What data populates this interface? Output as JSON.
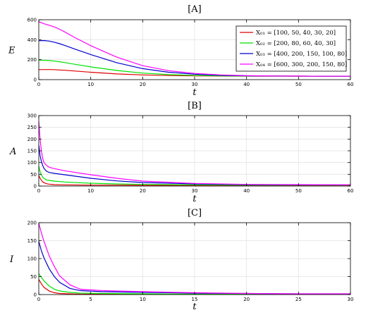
{
  "colors": [
    "#e00000",
    "#00e000",
    "#0000cc",
    "#ff00ff"
  ],
  "chart_data": [
    {
      "type": "line",
      "title": "[A]",
      "xlabel": "t",
      "ylabel": "E",
      "xlim": [
        0,
        60
      ],
      "ylim": [
        0,
        600
      ],
      "xticks": [
        0,
        10,
        20,
        30,
        40,
        50,
        60
      ],
      "yticks": [
        0,
        200,
        400,
        600
      ],
      "grid": true,
      "legend": "top-right",
      "series": [
        {
          "name": "X01 = [100, 50, 40, 30, 20]",
          "legend_label": "X₀₁ = [100, 50, 40, 30, 20]",
          "x": [
            0,
            1,
            2,
            3,
            4,
            5,
            7,
            10,
            15,
            20,
            25,
            30,
            35,
            40,
            45,
            50,
            55,
            60
          ],
          "y": [
            100,
            101,
            101,
            100,
            97,
            94,
            86,
            74,
            57,
            47,
            41,
            38,
            36,
            35,
            35,
            35,
            34,
            34
          ]
        },
        {
          "name": "X02 = [200, 80, 60, 40, 30]",
          "legend_label": "X₀₂ = [200, 80, 60, 40, 30]",
          "x": [
            0,
            1,
            2,
            3,
            4,
            5,
            7,
            10,
            15,
            20,
            25,
            30,
            35,
            40,
            45,
            50,
            55,
            60
          ],
          "y": [
            195,
            194,
            191,
            186,
            179,
            171,
            153,
            128,
            92,
            66,
            50,
            42,
            38,
            36,
            35,
            34,
            34,
            34
          ]
        },
        {
          "name": "X03 = [400, 200, 150, 100, 80]",
          "legend_label": "X₀₃ = [400, 200, 150, 100, 80]",
          "x": [
            0,
            1,
            2,
            3,
            4,
            5,
            7,
            10,
            15,
            20,
            25,
            30,
            35,
            40,
            45,
            50,
            55,
            60
          ],
          "y": [
            390,
            392,
            386,
            375,
            360,
            343,
            305,
            251,
            170,
            110,
            74,
            54,
            43,
            38,
            36,
            35,
            34,
            34
          ]
        },
        {
          "name": "X04 = [600, 300, 200, 150, 80]",
          "legend_label": "X₀₄ = [600, 300, 200, 150, 80]",
          "x": [
            0,
            1,
            2,
            3,
            4,
            5,
            7,
            10,
            15,
            20,
            25,
            30,
            35,
            40,
            45,
            50,
            55,
            60
          ],
          "y": [
            580,
            560,
            545,
            528,
            505,
            478,
            420,
            340,
            225,
            140,
            90,
            62,
            47,
            40,
            37,
            35,
            34,
            34
          ]
        }
      ]
    },
    {
      "type": "line",
      "title": "[B]",
      "xlabel": "t",
      "ylabel": "A",
      "xlim": [
        0,
        60
      ],
      "ylim": [
        0,
        300
      ],
      "xticks": [
        0,
        10,
        20,
        30,
        40,
        50,
        60
      ],
      "yticks": [
        0,
        50,
        100,
        150,
        200,
        250,
        300
      ],
      "grid": true,
      "series": [
        {
          "x": [
            0,
            0.25,
            0.5,
            0.75,
            1,
            1.5,
            2,
            3,
            5,
            10,
            15,
            20,
            30,
            40,
            50,
            60
          ],
          "y": [
            45,
            33,
            25,
            18,
            14,
            10,
            8,
            6,
            5,
            4,
            4,
            3,
            3,
            3,
            3,
            3
          ]
        },
        {
          "x": [
            0,
            0.25,
            0.5,
            0.75,
            1,
            1.5,
            2,
            3,
            5,
            10,
            15,
            20,
            30,
            40,
            50,
            60
          ],
          "y": [
            85,
            62,
            48,
            38,
            32,
            26,
            24,
            21,
            17,
            12,
            9,
            7,
            5,
            4,
            4,
            4
          ]
        },
        {
          "x": [
            0,
            0.25,
            0.5,
            0.75,
            1,
            1.5,
            2,
            3,
            5,
            10,
            15,
            20,
            30,
            40,
            50,
            60
          ],
          "y": [
            175,
            130,
            105,
            88,
            75,
            63,
            58,
            54,
            48,
            33,
            22,
            15,
            9,
            6,
            5,
            5
          ]
        },
        {
          "x": [
            0,
            0.25,
            0.5,
            0.75,
            1,
            1.5,
            2,
            3,
            5,
            10,
            15,
            20,
            30,
            40,
            50,
            60
          ],
          "y": [
            275,
            200,
            150,
            118,
            100,
            88,
            80,
            74,
            65,
            48,
            33,
            21,
            11,
            7,
            6,
            5
          ]
        }
      ]
    },
    {
      "type": "line",
      "title": "[C]",
      "xlabel": "t",
      "ylabel": "I",
      "xlim": [
        0,
        30
      ],
      "ylim": [
        0,
        200
      ],
      "xticks": [
        0,
        5,
        10,
        15,
        20,
        25,
        30
      ],
      "yticks": [
        0,
        50,
        100,
        150,
        200
      ],
      "grid": true,
      "series": [
        {
          "x": [
            0,
            0.25,
            0.5,
            1,
            1.5,
            2,
            3,
            4,
            6,
            10,
            15,
            20,
            25,
            30
          ],
          "y": [
            42,
            30,
            20,
            10,
            5,
            3,
            2,
            1,
            1,
            1,
            1,
            1,
            1,
            1
          ]
        },
        {
          "x": [
            0,
            0.25,
            0.5,
            1,
            1.5,
            2,
            3,
            4,
            6,
            10,
            15,
            20,
            25,
            30
          ],
          "y": [
            58,
            48,
            38,
            24,
            15,
            10,
            6,
            4,
            3,
            2,
            1,
            1,
            1,
            1
          ]
        },
        {
          "x": [
            0,
            0.25,
            0.5,
            1,
            1.5,
            2,
            3,
            4,
            6,
            10,
            15,
            20,
            25,
            30
          ],
          "y": [
            148,
            122,
            102,
            72,
            50,
            34,
            17,
            11,
            8,
            6,
            4,
            3,
            2,
            2
          ]
        },
        {
          "x": [
            0,
            0.25,
            0.5,
            1,
            1.5,
            2,
            3,
            4,
            6,
            10,
            15,
            20,
            25,
            30
          ],
          "y": [
            198,
            172,
            148,
            108,
            78,
            52,
            27,
            15,
            11,
            8,
            5,
            3,
            2,
            2
          ]
        }
      ]
    }
  ]
}
